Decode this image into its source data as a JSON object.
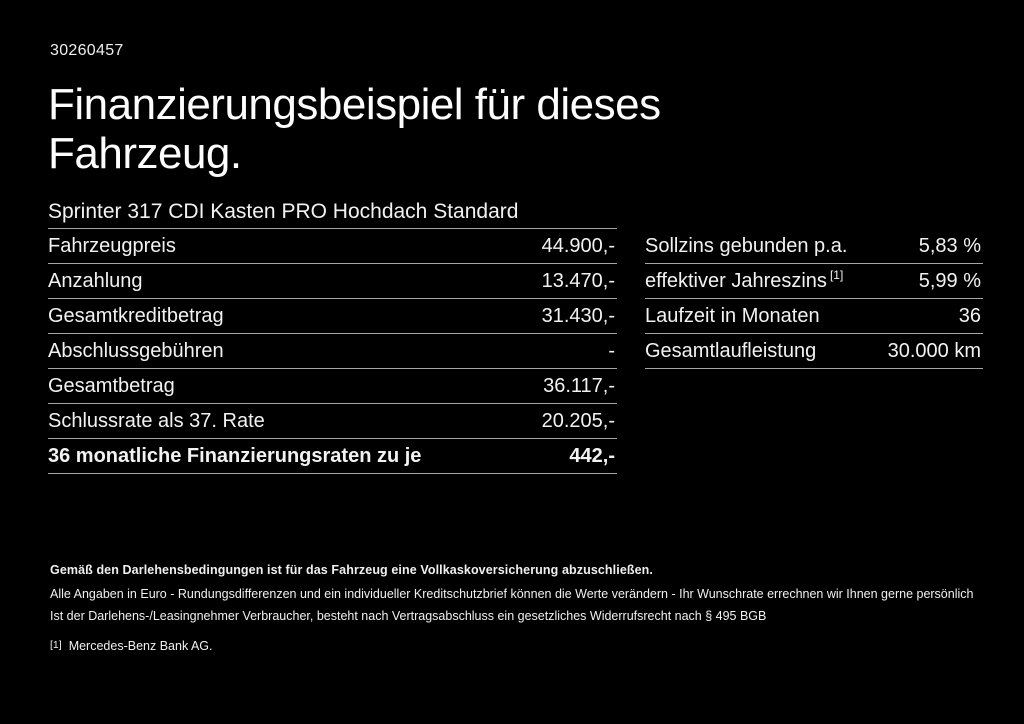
{
  "page": {
    "doc_id": "30260457",
    "title_line1": "Finanzierungsbeispiel für dieses",
    "title_line2": "Fahrzeug.",
    "subtitle": "Sprinter 317 CDI Kasten PRO Hochdach Standard"
  },
  "tables": {
    "left": {
      "rows": [
        {
          "label": "Fahrzeugpreis",
          "value": "44.900,-"
        },
        {
          "label": "Anzahlung",
          "value": "13.470,-"
        },
        {
          "label": "Gesamtkreditbetrag",
          "value": "31.430,-"
        },
        {
          "label": "Abschlussgebühren",
          "value": "-"
        },
        {
          "label": "Gesamtbetrag",
          "value": "36.117,-"
        },
        {
          "label": "Schlussrate als 37. Rate",
          "value": "20.205,-"
        },
        {
          "label": "36 monatliche Finanzierungsraten zu je",
          "value": "442,-"
        }
      ]
    },
    "right": {
      "rows": [
        {
          "label": "Sollzins gebunden p.a.",
          "value": "5,83 %"
        },
        {
          "label": "effektiver Jahreszins",
          "sup": "[1]",
          "value": "5,99 %"
        },
        {
          "label": "Laufzeit in Monaten",
          "value": "36"
        },
        {
          "label": "Gesamtlaufleistung",
          "value": "30.000 km"
        }
      ]
    }
  },
  "footer": {
    "line1": "Gemäß den Darlehensbedingungen ist für das Fahrzeug eine Vollkaskoversicherung abzuschließen.",
    "line2": "Alle Angaben in Euro - Rundungsdifferenzen und ein individueller Kreditschutzbrief können die Werte verändern - Ihr Wunschrate errechnen wir Ihnen gerne persönlich",
    "line3": "Ist der Darlehens-/Leasingnehmer Verbraucher, besteht nach Vertragsabschluss ein gesetzliches Widerrufsrecht nach § 495 BGB",
    "footnote_marker": "[1]",
    "footnote_text": "Mercedes-Benz Bank AG."
  },
  "colors": {
    "background": "#000000",
    "text": "#f2f2f2",
    "separator": "#a6a6a6"
  }
}
